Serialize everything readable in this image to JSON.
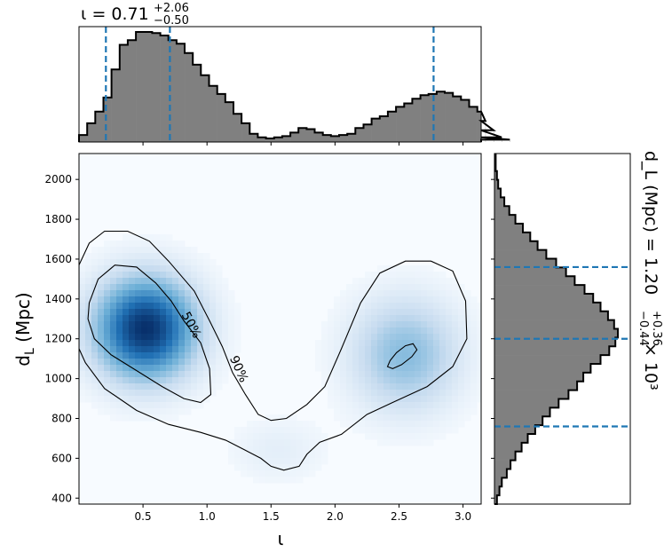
{
  "chart_data": [
    {
      "id": "joint",
      "type": "heatmap",
      "xlabel": "ι",
      "ylabel": "d_L (Mpc)",
      "xlim": [
        0,
        3.14159
      ],
      "ylim": [
        370,
        2130
      ],
      "xticks": [
        0.5,
        1.0,
        1.5,
        2.0,
        2.5,
        3.0
      ],
      "yticks": [
        400,
        600,
        800,
        1000,
        1200,
        1400,
        1600,
        1800,
        2000
      ],
      "colormap": "Blues",
      "density_peaks": [
        {
          "x": 0.52,
          "y": 1250,
          "amplitude": 1.0
        },
        {
          "x": 2.55,
          "y": 1120,
          "amplitude": 0.42
        },
        {
          "x": 1.55,
          "y": 640,
          "amplitude": 0.1
        }
      ],
      "contour_labels": [
        "50%",
        "90%"
      ],
      "contours": [
        {
          "level": "90%",
          "points": [
            [
              0.0,
              1570
            ],
            [
              0.08,
              1680
            ],
            [
              0.2,
              1740
            ],
            [
              0.38,
              1740
            ],
            [
              0.55,
              1690
            ],
            [
              0.7,
              1590
            ],
            [
              0.9,
              1440
            ],
            [
              1.02,
              1290
            ],
            [
              1.12,
              1160
            ],
            [
              1.2,
              1030
            ],
            [
              1.3,
              920
            ],
            [
              1.4,
              820
            ],
            [
              1.5,
              790
            ],
            [
              1.62,
              800
            ],
            [
              1.78,
              870
            ],
            [
              1.92,
              960
            ],
            [
              2.05,
              1150
            ],
            [
              2.2,
              1380
            ],
            [
              2.35,
              1530
            ],
            [
              2.55,
              1590
            ],
            [
              2.75,
              1590
            ],
            [
              2.92,
              1540
            ],
            [
              3.02,
              1390
            ],
            [
              3.03,
              1200
            ],
            [
              2.92,
              1060
            ],
            [
              2.72,
              960
            ],
            [
              2.45,
              880
            ],
            [
              2.25,
              820
            ],
            [
              2.05,
              720
            ],
            [
              1.88,
              680
            ],
            [
              1.78,
              620
            ],
            [
              1.72,
              560
            ],
            [
              1.6,
              540
            ],
            [
              1.5,
              560
            ],
            [
              1.42,
              600
            ],
            [
              1.3,
              640
            ],
            [
              1.15,
              690
            ],
            [
              0.95,
              730
            ],
            [
              0.7,
              770
            ],
            [
              0.45,
              840
            ],
            [
              0.2,
              950
            ],
            [
              0.05,
              1080
            ],
            [
              0.0,
              1150
            ]
          ]
        },
        {
          "level": "50%",
          "points": [
            [
              0.08,
              1380
            ],
            [
              0.15,
              1500
            ],
            [
              0.28,
              1570
            ],
            [
              0.45,
              1560
            ],
            [
              0.6,
              1480
            ],
            [
              0.72,
              1390
            ],
            [
              0.82,
              1290
            ],
            [
              0.95,
              1180
            ],
            [
              1.02,
              1050
            ],
            [
              1.03,
              920
            ],
            [
              0.95,
              880
            ],
            [
              0.82,
              900
            ],
            [
              0.65,
              960
            ],
            [
              0.45,
              1040
            ],
            [
              0.25,
              1120
            ],
            [
              0.12,
              1200
            ],
            [
              0.07,
              1300
            ]
          ]
        },
        {
          "level": "50%",
          "points": [
            [
              2.43,
              1090
            ],
            [
              2.48,
              1130
            ],
            [
              2.55,
              1165
            ],
            [
              2.61,
              1175
            ],
            [
              2.64,
              1145
            ],
            [
              2.6,
              1110
            ],
            [
              2.52,
              1070
            ],
            [
              2.45,
              1050
            ],
            [
              2.41,
              1060
            ]
          ]
        }
      ]
    },
    {
      "id": "top",
      "type": "bar",
      "title": "ι = 0.71",
      "title_sup": "+2.06",
      "title_sub": "−0.50",
      "xlim": [
        0,
        3.14159
      ],
      "bin_width": 0.0635,
      "bin_start": 0.0,
      "values": [
        0.06,
        0.16,
        0.26,
        0.38,
        0.62,
        0.83,
        0.87,
        0.94,
        0.94,
        0.93,
        0.91,
        0.87,
        0.84,
        0.76,
        0.66,
        0.57,
        0.48,
        0.41,
        0.34,
        0.24,
        0.16,
        0.07,
        0.04,
        0.03,
        0.04,
        0.05,
        0.08,
        0.12,
        0.11,
        0.08,
        0.06,
        0.05,
        0.06,
        0.07,
        0.12,
        0.15,
        0.2,
        0.22,
        0.26,
        0.3,
        0.33,
        0.37,
        0.4,
        0.41,
        0.43,
        0.42,
        0.39,
        0.36,
        0.3,
        0.26,
        0.18,
        0.1,
        0.04,
        0.02
      ],
      "vlines": [
        0.21,
        0.71,
        2.77
      ]
    },
    {
      "id": "right",
      "type": "bar",
      "orientation": "horizontal",
      "label": "d_L (Mpc) = 1.20",
      "label_sup": "+0.36",
      "label_sub": "−0.44",
      "label_tail": "× 10³",
      "ylim": [
        370,
        2130
      ],
      "bin_width": 44,
      "bin_start": 370,
      "values": [
        0.02,
        0.04,
        0.06,
        0.1,
        0.13,
        0.17,
        0.22,
        0.27,
        0.33,
        0.39,
        0.45,
        0.52,
        0.6,
        0.67,
        0.72,
        0.78,
        0.86,
        0.93,
        0.98,
        1.0,
        0.97,
        0.92,
        0.86,
        0.8,
        0.73,
        0.65,
        0.58,
        0.5,
        0.42,
        0.35,
        0.29,
        0.23,
        0.17,
        0.12,
        0.08,
        0.05,
        0.03,
        0.02,
        0.01,
        0.01
      ],
      "hlines": [
        760,
        1200,
        1560
      ]
    }
  ],
  "colors": {
    "hist_fill": "#808080",
    "hist_edge": "#000000",
    "quantile_line": "#1f77b4",
    "heat_max": "#08306b",
    "heat_min": "#f7fbff"
  }
}
